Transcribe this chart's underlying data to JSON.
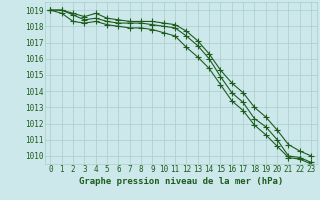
{
  "hours": [
    0,
    1,
    2,
    3,
    4,
    5,
    6,
    7,
    8,
    9,
    10,
    11,
    12,
    13,
    14,
    15,
    16,
    17,
    18,
    19,
    20,
    21,
    22,
    23
  ],
  "line_main": [
    1019.0,
    1019.0,
    1018.7,
    1018.4,
    1018.5,
    1018.3,
    1018.2,
    1018.2,
    1018.2,
    1018.1,
    1018.0,
    1017.9,
    1017.4,
    1016.8,
    1016.0,
    1014.9,
    1013.9,
    1013.3,
    1012.3,
    1011.8,
    1011.0,
    1010.0,
    1009.9,
    1009.6
  ],
  "line_upper": [
    1019.0,
    1019.0,
    1018.8,
    1018.6,
    1018.8,
    1018.5,
    1018.4,
    1018.3,
    1018.3,
    1018.3,
    1018.2,
    1018.1,
    1017.7,
    1017.1,
    1016.3,
    1015.3,
    1014.5,
    1013.9,
    1013.0,
    1012.4,
    1011.6,
    1010.7,
    1010.3,
    1010.0
  ],
  "line_lower": [
    1019.0,
    1018.8,
    1018.3,
    1018.2,
    1018.3,
    1018.1,
    1018.0,
    1017.9,
    1017.9,
    1017.8,
    1017.6,
    1017.4,
    1016.7,
    1016.1,
    1015.4,
    1014.4,
    1013.4,
    1012.8,
    1011.9,
    1011.3,
    1010.6,
    1009.9,
    1009.8,
    1009.5
  ],
  "xlabel": "Graphe pression niveau de la mer (hPa)",
  "ylim_min": 1009.5,
  "ylim_max": 1019.5,
  "yticks": [
    1010,
    1011,
    1012,
    1013,
    1014,
    1015,
    1016,
    1017,
    1018,
    1019
  ],
  "bg_color": "#cce8ea",
  "grid_color": "#aacccc",
  "line_color": "#1e5c1e",
  "marker": "+",
  "markersize": 4,
  "linewidth": 0.8,
  "xlabel_fontsize": 6.5,
  "tick_fontsize": 5.5,
  "xlabel_color": "#1e5c1e",
  "tick_color": "#1e5c1e"
}
